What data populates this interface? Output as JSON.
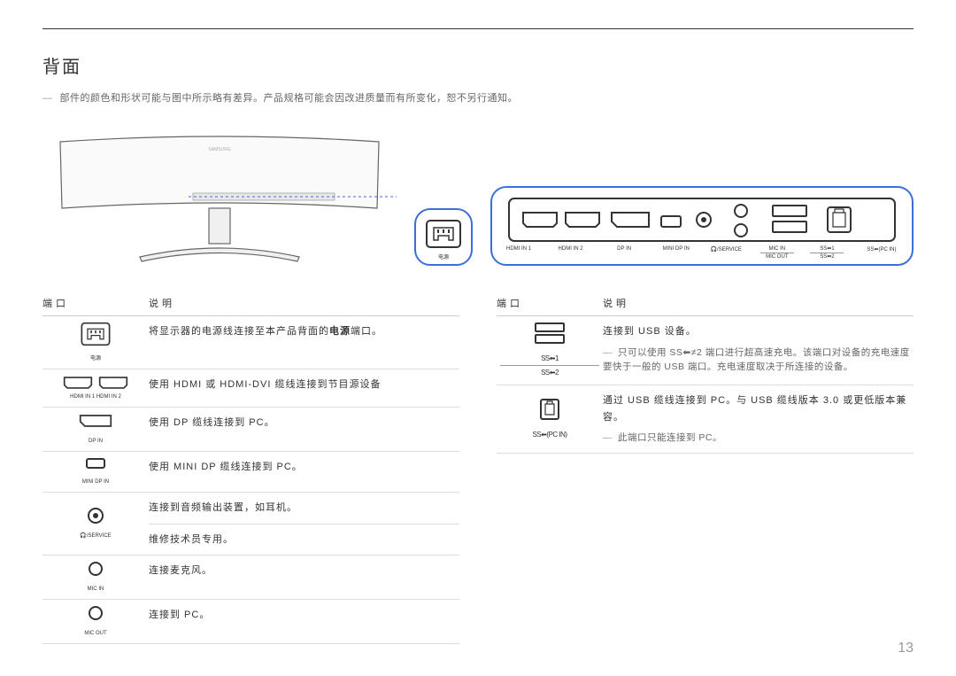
{
  "title": "背面",
  "disclaimer": "部件的颜色和形状可能与图中所示略有差异。产品规格可能会因改进质量而有所变化，恕不另行通知。",
  "table_headers": {
    "port": "端口",
    "desc": "说明"
  },
  "page_number": "13",
  "enlarge_power_label": "电源",
  "enlarge_ports": {
    "labels": [
      "HDMI IN 1",
      "HDMI IN 2",
      "DP IN",
      "MINI DP IN",
      "🎧/SERVICE",
      "MIC IN",
      "MIC OUT",
      "SS⬅1",
      "SS⬅2",
      "SS⬅(PC IN)"
    ]
  },
  "left_rows": [
    {
      "label": "电源",
      "desc_html": "将显示器的电源线连接至本产品背面的<b>电源</b>端口。"
    },
    {
      "label": "HDMI IN 1   HDMI IN 2",
      "desc_html": "使用 HDMI 或 HDMI-DVI 缆线连接到节目源设备"
    },
    {
      "label": "DP IN",
      "desc_html": "使用 DP 缆线连接到 PC。"
    },
    {
      "label": "MINI DP IN",
      "desc_html": "使用 MINI DP 缆线连接到 PC。"
    },
    {
      "label": "🎧/SERVICE",
      "desc_html": "连接到音频输出装置，如耳机。",
      "desc2": "维修技术员专用。"
    },
    {
      "label": "MIC IN",
      "desc_html": "连接麦克风。"
    },
    {
      "label": "MIC OUT",
      "desc_html": "连接到 PC。"
    }
  ],
  "right_rows": [
    {
      "label_top": "SS⬅1",
      "label_bot": "SS⬅2",
      "desc_html": "连接到 USB 设备。",
      "note": "只可以使用 SS⬅≠2 端口进行超高速充电。该端口对设备的充电速度要快于一般的 USB 端口。充电速度取决于所连接的设备。"
    },
    {
      "label": "SS⬅(PC IN)",
      "desc_html": "通过 USB 缆线连接到 PC。与 USB 缆线版本 3.0 或更低版本兼容。",
      "note": "此端口只能连接到 PC。"
    }
  ],
  "colors": {
    "accent": "#3a6fd8",
    "stroke": "#333333",
    "dashed": "#3a6fd8"
  }
}
